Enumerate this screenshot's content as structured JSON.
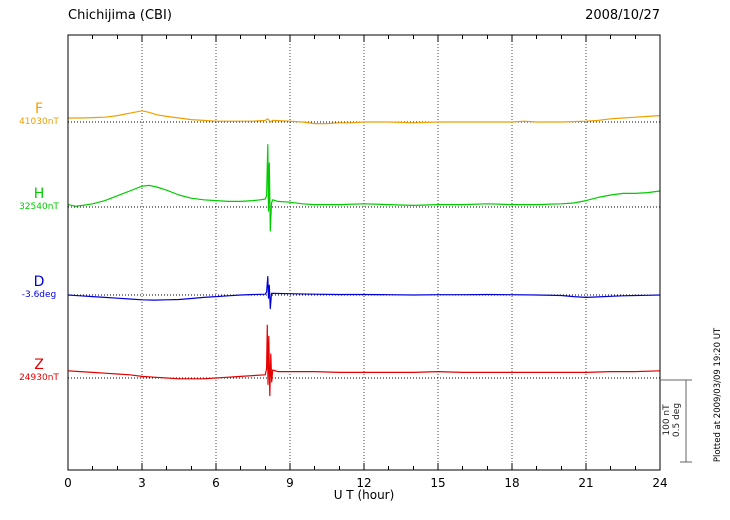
{
  "header": {
    "station": "Chichijima (CBI)",
    "date": "2008/10/27"
  },
  "xlabel": "U T (hour)",
  "scalebar": {
    "line1": "100 nT",
    "line2": "0.5 deg"
  },
  "footnote": "Plotted at 2009/03/09 19:20 UT",
  "chart_data": {
    "type": "line",
    "title": "Chichijima (CBI) magnetogram 2008/10/27",
    "xlabel": "U T (hour)",
    "x_range": [
      0,
      24
    ],
    "x_ticks": [
      0,
      3,
      6,
      9,
      12,
      15,
      18,
      21,
      24
    ],
    "x_minor_step": 1,
    "grid": "dotted vertical lines at 3-hour ticks, dotted horizontal baseline per trace",
    "legend_position": "left of each trace baseline",
    "scale": {
      "bar_value_nT": 100,
      "bar_value_deg": 0.5
    },
    "series": [
      {
        "name": "F",
        "unit": "nT",
        "color": "#EFA000",
        "baseline_label": "41030nT",
        "points": [
          [
            0,
            5
          ],
          [
            0.5,
            5
          ],
          [
            1,
            5.5
          ],
          [
            1.5,
            6
          ],
          [
            2,
            8
          ],
          [
            2.5,
            11
          ],
          [
            3,
            14
          ],
          [
            3.3,
            12
          ],
          [
            3.6,
            9
          ],
          [
            4,
            7
          ],
          [
            4.5,
            5
          ],
          [
            5,
            3
          ],
          [
            5.5,
            2
          ],
          [
            6,
            1
          ],
          [
            6.5,
            1
          ],
          [
            7,
            1
          ],
          [
            7.5,
            1
          ],
          [
            8,
            2
          ],
          [
            8.1,
            4
          ],
          [
            8.2,
            0
          ],
          [
            8.3,
            2
          ],
          [
            9,
            1
          ],
          [
            9.5,
            0
          ],
          [
            10,
            -2
          ],
          [
            10.5,
            -2
          ],
          [
            11,
            -1
          ],
          [
            11.5,
            -1
          ],
          [
            12,
            0
          ],
          [
            13,
            0
          ],
          [
            14,
            -1
          ],
          [
            15,
            0
          ],
          [
            16,
            0
          ],
          [
            17,
            0
          ],
          [
            18,
            0
          ],
          [
            18.5,
            1
          ],
          [
            19,
            0
          ],
          [
            20,
            0
          ],
          [
            21,
            1
          ],
          [
            21.5,
            2
          ],
          [
            22,
            4
          ],
          [
            22.5,
            5
          ],
          [
            23,
            6
          ],
          [
            23.5,
            7
          ],
          [
            24,
            8
          ]
        ]
      },
      {
        "name": "H",
        "unit": "nT",
        "color": "#00CC00",
        "baseline_label": "32540nT",
        "points": [
          [
            0,
            3
          ],
          [
            0.3,
            1
          ],
          [
            0.6,
            2
          ],
          [
            1,
            4
          ],
          [
            1.5,
            8
          ],
          [
            2,
            14
          ],
          [
            2.5,
            20
          ],
          [
            3,
            26
          ],
          [
            3.3,
            27
          ],
          [
            3.6,
            25
          ],
          [
            4,
            21
          ],
          [
            4.5,
            15
          ],
          [
            5,
            11
          ],
          [
            5.5,
            9
          ],
          [
            6,
            8
          ],
          [
            6.5,
            7
          ],
          [
            7,
            7
          ],
          [
            7.5,
            8
          ],
          [
            7.8,
            9
          ],
          [
            8,
            10
          ],
          [
            8.05,
            14
          ],
          [
            8.1,
            78
          ],
          [
            8.13,
            -5
          ],
          [
            8.16,
            55
          ],
          [
            8.2,
            -30
          ],
          [
            8.25,
            5
          ],
          [
            8.3,
            9
          ],
          [
            8.5,
            7
          ],
          [
            9,
            6
          ],
          [
            9.5,
            4
          ],
          [
            10,
            3
          ],
          [
            10.5,
            3
          ],
          [
            11,
            3
          ],
          [
            12,
            4
          ],
          [
            13,
            3
          ],
          [
            14,
            2
          ],
          [
            15,
            3
          ],
          [
            16,
            3
          ],
          [
            17,
            4
          ],
          [
            18,
            3
          ],
          [
            19,
            3
          ],
          [
            20,
            4
          ],
          [
            20.5,
            5
          ],
          [
            21,
            8
          ],
          [
            21.5,
            12
          ],
          [
            22,
            15
          ],
          [
            22.5,
            17
          ],
          [
            23,
            17
          ],
          [
            23.5,
            18
          ],
          [
            24,
            20
          ]
        ]
      },
      {
        "name": "D",
        "unit": "deg",
        "color": "#0000DD",
        "baseline_label": "-3.6deg",
        "points": [
          [
            0,
            0
          ],
          [
            0.5,
            -0.005
          ],
          [
            1,
            -0.01
          ],
          [
            1.5,
            -0.015
          ],
          [
            2,
            -0.02
          ],
          [
            2.5,
            -0.025
          ],
          [
            3,
            -0.03
          ],
          [
            3.5,
            -0.032
          ],
          [
            4,
            -0.03
          ],
          [
            4.5,
            -0.028
          ],
          [
            5,
            -0.022
          ],
          [
            5.5,
            -0.015
          ],
          [
            6,
            -0.01
          ],
          [
            6.5,
            -0.005
          ],
          [
            7,
            0
          ],
          [
            7.5,
            0.003
          ],
          [
            8,
            0.005
          ],
          [
            8.05,
            0.02
          ],
          [
            8.1,
            0.115
          ],
          [
            8.13,
            -0.02
          ],
          [
            8.16,
            0.06
          ],
          [
            8.2,
            -0.085
          ],
          [
            8.25,
            0.01
          ],
          [
            8.3,
            0.01
          ],
          [
            9,
            0.008
          ],
          [
            10,
            0.005
          ],
          [
            11,
            0.003
          ],
          [
            12,
            0.003
          ],
          [
            13,
            0.002
          ],
          [
            14,
            0
          ],
          [
            15,
            0.002
          ],
          [
            16,
            0.002
          ],
          [
            17,
            0.003
          ],
          [
            18,
            0.002
          ],
          [
            19,
            0
          ],
          [
            20,
            -0.003
          ],
          [
            20.5,
            -0.01
          ],
          [
            21,
            -0.015
          ],
          [
            21.5,
            -0.012
          ],
          [
            22,
            -0.008
          ],
          [
            22.5,
            -0.005
          ],
          [
            23,
            -0.003
          ],
          [
            23.5,
            -0.002
          ],
          [
            24,
            0
          ]
        ]
      },
      {
        "name": "Z",
        "unit": "nT",
        "color": "#E60000",
        "baseline_label": "24930nT",
        "points": [
          [
            0,
            9
          ],
          [
            0.5,
            8
          ],
          [
            1,
            7
          ],
          [
            1.5,
            6
          ],
          [
            2,
            5
          ],
          [
            2.5,
            4
          ],
          [
            3,
            2
          ],
          [
            3.5,
            1
          ],
          [
            4,
            0
          ],
          [
            4.5,
            -1
          ],
          [
            5,
            -1
          ],
          [
            5.5,
            -1
          ],
          [
            6,
            0
          ],
          [
            6.5,
            1
          ],
          [
            7,
            2
          ],
          [
            7.5,
            3
          ],
          [
            8,
            4
          ],
          [
            8.05,
            12
          ],
          [
            8.08,
            66
          ],
          [
            8.11,
            -8
          ],
          [
            8.14,
            52
          ],
          [
            8.18,
            -22
          ],
          [
            8.22,
            30
          ],
          [
            8.26,
            -5
          ],
          [
            8.3,
            10
          ],
          [
            8.5,
            8
          ],
          [
            9,
            8
          ],
          [
            9.5,
            8
          ],
          [
            10,
            8
          ],
          [
            11,
            7
          ],
          [
            12,
            7
          ],
          [
            13,
            7
          ],
          [
            14,
            7
          ],
          [
            15,
            8
          ],
          [
            16,
            7
          ],
          [
            17,
            7
          ],
          [
            18,
            7
          ],
          [
            19,
            7
          ],
          [
            20,
            7
          ],
          [
            21,
            7
          ],
          [
            22,
            8
          ],
          [
            23,
            8
          ],
          [
            24,
            9
          ]
        ]
      }
    ]
  }
}
